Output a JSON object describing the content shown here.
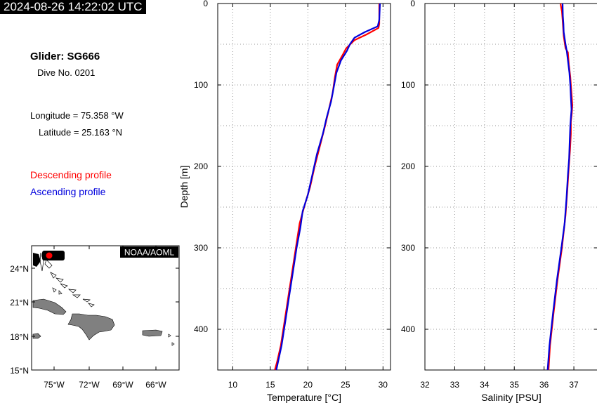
{
  "header": {
    "timestamp": "2024-08-26 14:22:02 UTC",
    "glider": "Glider: SG666",
    "dive": "Dive No. 0201",
    "longitude": "Longitude = 75.358 °W",
    "latitude": "Latitude = 25.163 °N",
    "legend_descending": "Descending profile",
    "legend_ascending": "Ascending profile"
  },
  "colors": {
    "descending": "#ff0000",
    "ascending": "#0000dd",
    "land": "#808080",
    "grid": "#999999"
  },
  "map": {
    "credit": "NOAA/AOML",
    "lat_ticks": [
      "24°N",
      "21°N",
      "18°N",
      "15°N"
    ],
    "lon_ticks": [
      "75°W",
      "72°W",
      "69°W",
      "66°W"
    ],
    "lon_range": [
      -77.5,
      -64
    ],
    "lat_range": [
      15,
      26
    ],
    "glider_position": {
      "lon": -75.358,
      "lat": 25.163
    }
  },
  "chart_data": [
    {
      "type": "line",
      "title": "",
      "xlabel": "Temperature [°C]",
      "ylabel": "Depth [m]",
      "xlim": [
        8,
        31
      ],
      "ylim": [
        450,
        0
      ],
      "xticks": [
        10,
        15,
        20,
        25,
        30
      ],
      "yticks": [
        0,
        100,
        200,
        300,
        400
      ],
      "grid": true,
      "series": [
        {
          "role": "descending",
          "depth": [
            0,
            25,
            30,
            38,
            45,
            55,
            62,
            75,
            90,
            110,
            130,
            150,
            175,
            200,
            225,
            250,
            270,
            300,
            330,
            360,
            390,
            420,
            440,
            450
          ],
          "values": [
            29.5,
            29.5,
            29.4,
            27.8,
            26.2,
            25.1,
            24.7,
            23.9,
            23.6,
            23.3,
            22.8,
            22.3,
            21.6,
            20.9,
            20.3,
            19.5,
            18.9,
            18.4,
            17.9,
            17.4,
            16.9,
            16.4,
            15.9,
            15.6
          ]
        },
        {
          "role": "ascending",
          "depth": [
            0,
            20,
            28,
            35,
            42,
            50,
            58,
            70,
            85,
            100,
            120,
            140,
            160,
            185,
            210,
            235,
            255,
            275,
            300,
            330,
            360,
            390,
            420,
            450
          ],
          "values": [
            29.6,
            29.5,
            29.3,
            27.6,
            26.2,
            25.6,
            25.2,
            24.4,
            23.8,
            23.5,
            23.1,
            22.5,
            22.0,
            21.2,
            20.6,
            20.0,
            19.3,
            19.0,
            18.5,
            18.0,
            17.5,
            17.0,
            16.5,
            15.8
          ]
        }
      ]
    },
    {
      "type": "line",
      "title": "",
      "xlabel": "Salinity [PSU]",
      "ylabel": "",
      "xlim": [
        32,
        37.8
      ],
      "ylim": [
        450,
        0
      ],
      "xticks": [
        32,
        33,
        34,
        35,
        36,
        37
      ],
      "yticks": [
        0,
        100,
        200,
        300,
        400
      ],
      "grid": true,
      "series": [
        {
          "role": "descending",
          "depth": [
            0,
            10,
            20,
            40,
            55,
            60,
            75,
            90,
            100,
            115,
            125,
            135,
            145,
            160,
            180,
            200,
            230,
            260,
            300,
            340,
            380,
            420,
            450
          ],
          "values": [
            36.55,
            36.6,
            36.62,
            36.66,
            36.72,
            36.8,
            36.83,
            36.88,
            36.9,
            36.93,
            36.95,
            36.93,
            36.9,
            36.9,
            36.87,
            36.83,
            36.78,
            36.72,
            36.6,
            36.45,
            36.32,
            36.2,
            36.15
          ]
        },
        {
          "role": "ascending",
          "depth": [
            0,
            15,
            25,
            35,
            50,
            58,
            70,
            85,
            100,
            115,
            130,
            140,
            150,
            170,
            190,
            210,
            240,
            270,
            300,
            340,
            380,
            420,
            450
          ],
          "values": [
            36.62,
            36.63,
            36.65,
            36.66,
            36.72,
            36.76,
            36.8,
            36.85,
            36.88,
            36.9,
            36.92,
            36.9,
            36.88,
            36.86,
            36.84,
            36.8,
            36.75,
            36.69,
            36.58,
            36.43,
            36.3,
            36.18,
            36.12
          ]
        }
      ]
    }
  ]
}
